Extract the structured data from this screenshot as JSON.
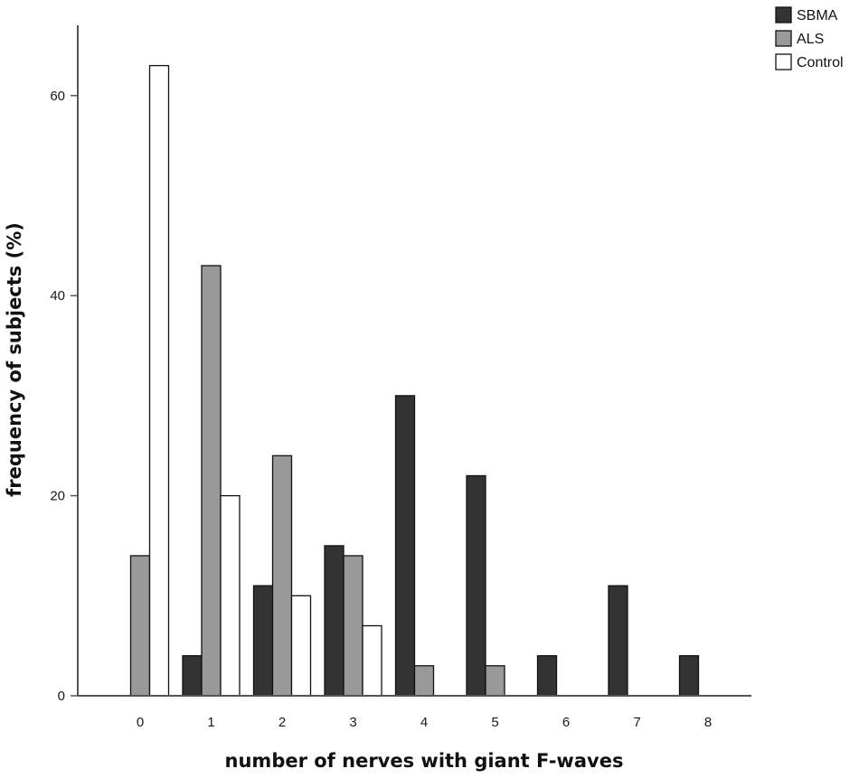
{
  "chart_data": {
    "type": "bar",
    "xlabel": "number of nerves with giant F-waves",
    "ylabel": "frequency of subjects (%)",
    "categories": [
      "0",
      "1",
      "2",
      "3",
      "4",
      "5",
      "6",
      "7",
      "8"
    ],
    "ylim": [
      0,
      67
    ],
    "yticks": [
      0,
      20,
      40,
      60
    ],
    "grid": false,
    "legend_position": "top-right",
    "series": [
      {
        "name": "SBMA",
        "color": "#333333",
        "values": [
          0,
          4,
          11,
          15,
          30,
          22,
          4,
          11,
          4
        ]
      },
      {
        "name": "ALS",
        "color": "#999999",
        "values": [
          14,
          43,
          24,
          14,
          3,
          3,
          0,
          0,
          0
        ]
      },
      {
        "name": "Control",
        "color": "#ffffff",
        "values": [
          63,
          20,
          10,
          7,
          0,
          0,
          0,
          0,
          0
        ]
      }
    ]
  }
}
